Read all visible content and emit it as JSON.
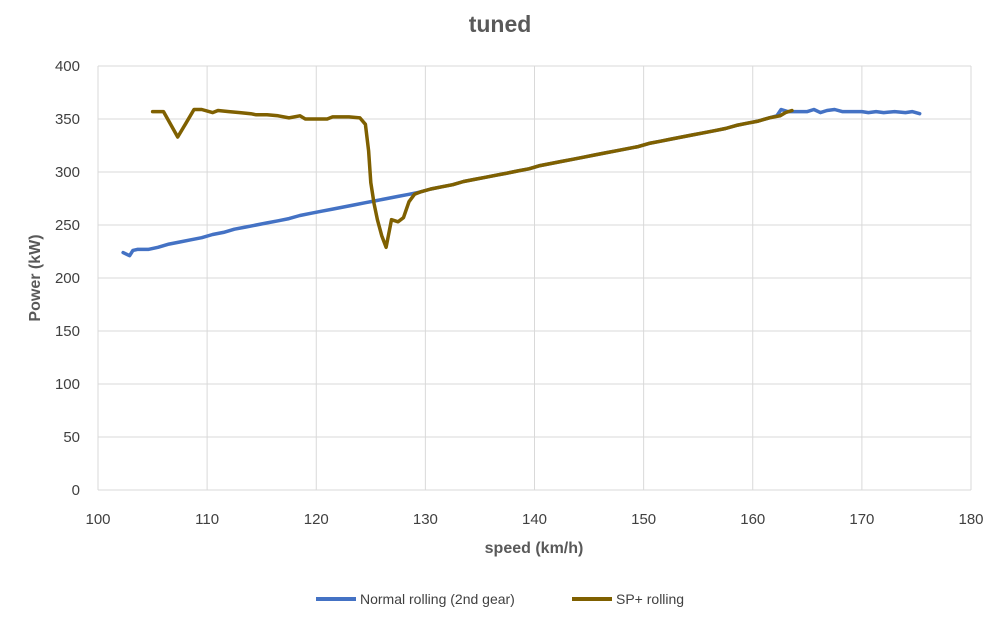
{
  "chart_data": {
    "type": "line",
    "title": "tuned",
    "xlabel": "speed (km/h)",
    "ylabel": "Power (kW)",
    "xlim": [
      100,
      180
    ],
    "ylim": [
      0,
      400
    ],
    "x_ticks": [
      100,
      110,
      120,
      130,
      140,
      150,
      160,
      170,
      180
    ],
    "y_ticks": [
      0,
      50,
      100,
      150,
      200,
      250,
      300,
      350,
      400
    ],
    "grid": true,
    "legend_position": "bottom",
    "series": [
      {
        "name": "Normal rolling (2nd gear)",
        "color": "#4472C4",
        "points": [
          [
            102.3,
            224
          ],
          [
            102.9,
            221
          ],
          [
            103.2,
            226
          ],
          [
            103.6,
            227
          ],
          [
            104.6,
            227
          ],
          [
            105.5,
            229
          ],
          [
            106.5,
            232
          ],
          [
            107.5,
            234
          ],
          [
            108.5,
            236
          ],
          [
            109.5,
            238
          ],
          [
            110.5,
            241
          ],
          [
            111.5,
            243
          ],
          [
            112.5,
            246
          ],
          [
            113.5,
            248
          ],
          [
            114.5,
            250
          ],
          [
            115.5,
            252
          ],
          [
            116.5,
            254
          ],
          [
            117.5,
            256
          ],
          [
            118.5,
            259
          ],
          [
            119.5,
            261
          ],
          [
            120.5,
            263
          ],
          [
            121.5,
            265
          ],
          [
            122.5,
            267
          ],
          [
            123.5,
            269
          ],
          [
            124.5,
            271
          ],
          [
            125.5,
            273
          ],
          [
            126.5,
            275
          ],
          [
            127.5,
            277
          ],
          [
            128.5,
            279
          ],
          [
            129.5,
            281
          ],
          [
            130.5,
            284
          ],
          [
            131.5,
            286
          ],
          [
            132.5,
            288
          ],
          [
            133.5,
            291
          ],
          [
            134.5,
            293
          ],
          [
            135.5,
            295
          ],
          [
            136.5,
            297
          ],
          [
            137.5,
            299
          ],
          [
            138.5,
            301
          ],
          [
            139.5,
            303
          ],
          [
            140.5,
            306
          ],
          [
            141.5,
            308
          ],
          [
            142.5,
            310
          ],
          [
            143.5,
            312
          ],
          [
            144.5,
            314
          ],
          [
            145.5,
            316
          ],
          [
            146.5,
            318
          ],
          [
            147.5,
            320
          ],
          [
            148.5,
            322
          ],
          [
            149.5,
            324
          ],
          [
            150.5,
            327
          ],
          [
            151.5,
            329
          ],
          [
            152.5,
            331
          ],
          [
            153.5,
            333
          ],
          [
            154.5,
            335
          ],
          [
            155.5,
            337
          ],
          [
            156.5,
            339
          ],
          [
            157.5,
            341
          ],
          [
            158.5,
            344
          ],
          [
            159.5,
            346
          ],
          [
            160.5,
            348
          ],
          [
            161.5,
            351
          ],
          [
            162.2,
            353
          ],
          [
            162.6,
            359
          ],
          [
            163.2,
            357
          ],
          [
            164.0,
            357
          ],
          [
            165.0,
            357
          ],
          [
            165.6,
            359
          ],
          [
            166.2,
            356
          ],
          [
            166.8,
            358
          ],
          [
            167.5,
            359
          ],
          [
            168.2,
            357
          ],
          [
            169.0,
            357
          ],
          [
            170.0,
            357
          ],
          [
            170.6,
            356
          ],
          [
            171.3,
            357
          ],
          [
            172.0,
            356
          ],
          [
            173.0,
            357
          ],
          [
            174.0,
            356
          ],
          [
            174.6,
            357
          ],
          [
            175.3,
            355
          ]
        ]
      },
      {
        "name": "SP+ rolling",
        "color": "#7F6000",
        "points": [
          [
            105.0,
            357
          ],
          [
            106.0,
            357
          ],
          [
            107.3,
            333
          ],
          [
            108.0,
            345
          ],
          [
            108.8,
            359
          ],
          [
            109.5,
            359
          ],
          [
            110.5,
            356
          ],
          [
            111.0,
            358
          ],
          [
            112.0,
            357
          ],
          [
            113.0,
            356
          ],
          [
            114.0,
            355
          ],
          [
            114.5,
            354
          ],
          [
            115.5,
            354
          ],
          [
            116.5,
            353
          ],
          [
            117.5,
            351
          ],
          [
            118.5,
            353
          ],
          [
            119.0,
            350
          ],
          [
            120.0,
            350
          ],
          [
            121.0,
            350
          ],
          [
            121.5,
            352
          ],
          [
            122.5,
            352
          ],
          [
            123.0,
            352
          ],
          [
            124.0,
            351
          ],
          [
            124.5,
            345
          ],
          [
            124.8,
            320
          ],
          [
            125.0,
            290
          ],
          [
            125.3,
            270
          ],
          [
            125.6,
            255
          ],
          [
            126.0,
            240
          ],
          [
            126.4,
            229
          ],
          [
            126.9,
            255
          ],
          [
            127.5,
            253
          ],
          [
            128.0,
            257
          ],
          [
            128.5,
            272
          ],
          [
            129.0,
            279
          ],
          [
            129.5,
            281
          ],
          [
            130.5,
            284
          ],
          [
            131.5,
            286
          ],
          [
            132.5,
            288
          ],
          [
            133.5,
            291
          ],
          [
            134.5,
            293
          ],
          [
            135.5,
            295
          ],
          [
            136.5,
            297
          ],
          [
            137.5,
            299
          ],
          [
            138.5,
            301
          ],
          [
            139.5,
            303
          ],
          [
            140.5,
            306
          ],
          [
            141.5,
            308
          ],
          [
            142.5,
            310
          ],
          [
            143.5,
            312
          ],
          [
            144.5,
            314
          ],
          [
            145.5,
            316
          ],
          [
            146.5,
            318
          ],
          [
            147.5,
            320
          ],
          [
            148.5,
            322
          ],
          [
            149.5,
            324
          ],
          [
            150.5,
            327
          ],
          [
            151.5,
            329
          ],
          [
            152.5,
            331
          ],
          [
            153.5,
            333
          ],
          [
            154.5,
            335
          ],
          [
            155.5,
            337
          ],
          [
            156.5,
            339
          ],
          [
            157.5,
            341
          ],
          [
            158.5,
            344
          ],
          [
            159.5,
            346
          ],
          [
            160.5,
            348
          ],
          [
            161.5,
            351
          ],
          [
            162.5,
            353
          ],
          [
            163.0,
            356
          ],
          [
            163.6,
            358
          ]
        ]
      }
    ]
  }
}
